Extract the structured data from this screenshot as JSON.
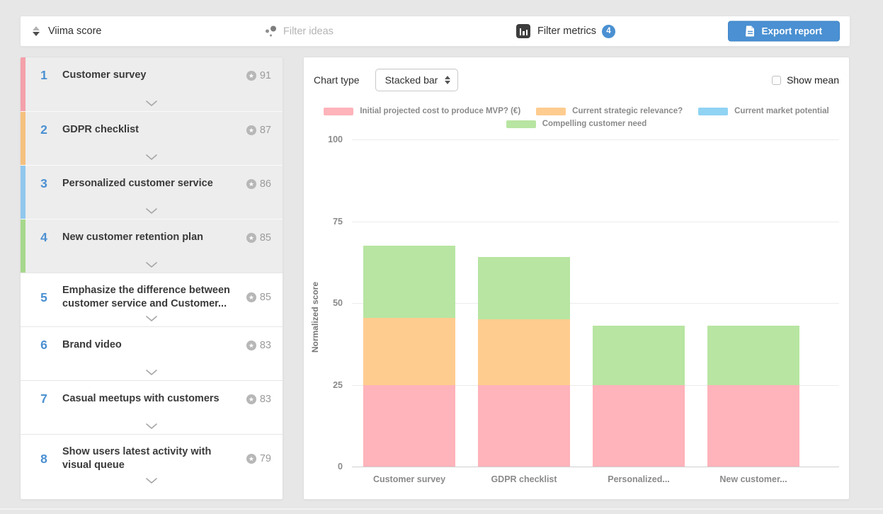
{
  "colors": {
    "accent_blue": "#4a90d2",
    "selected_row_bg": "#ededed"
  },
  "topbar": {
    "sort_label": "Viima score",
    "filter_ideas_placeholder": "Filter ideas",
    "filter_metrics_label": "Filter metrics",
    "filter_metrics_count": "4",
    "export_label": "Export report"
  },
  "idea_list": [
    {
      "rank": "1",
      "title": "Customer survey",
      "score": "91",
      "strip_color": "#f4a0aa",
      "selected": true
    },
    {
      "rank": "2",
      "title": "GDPR checklist",
      "score": "87",
      "strip_color": "#f5c07e",
      "selected": true
    },
    {
      "rank": "3",
      "title": "Personalized customer service",
      "score": "86",
      "strip_color": "#90c7ee",
      "selected": true
    },
    {
      "rank": "4",
      "title": "New customer retention plan",
      "score": "85",
      "strip_color": "#a6d88b",
      "selected": true
    },
    {
      "rank": "5",
      "title": "Emphasize the difference between customer service and Customer...",
      "score": "85",
      "strip_color": "",
      "selected": false
    },
    {
      "rank": "6",
      "title": "Brand video",
      "score": "83",
      "strip_color": "",
      "selected": false
    },
    {
      "rank": "7",
      "title": "Casual meetups with customers",
      "score": "83",
      "strip_color": "",
      "selected": false
    },
    {
      "rank": "8",
      "title": "Show users latest activity with visual queue",
      "score": "79",
      "strip_color": "",
      "selected": false
    }
  ],
  "chart_panel": {
    "chart_type_label": "Chart type",
    "chart_type_value": "Stacked bar",
    "show_mean_label": "Show mean",
    "show_mean_checked": false
  },
  "chart_data": {
    "type": "bar",
    "stacked": true,
    "categories": [
      "Customer survey",
      "GDPR checklist",
      "Personalized...",
      "New customer..."
    ],
    "series": [
      {
        "name": "Initial projected cost to produce MVP? (€)",
        "color": "#ffb3ba",
        "values": [
          25,
          25,
          25,
          25
        ]
      },
      {
        "name": "Current strategic relevance?",
        "color": "#ffcc8f",
        "values": [
          20.5,
          20,
          0,
          0
        ]
      },
      {
        "name": "Current market potential",
        "color": "#90d3f3",
        "values": [
          0,
          0,
          0,
          0
        ]
      },
      {
        "name": "Compelling customer need",
        "color": "#b8e5a2",
        "values": [
          22,
          19,
          18,
          18
        ]
      }
    ],
    "xlabel": "",
    "ylabel": "Normalized score",
    "ylim": [
      0,
      100
    ],
    "yticks": [
      0,
      25,
      50,
      75,
      100
    ],
    "grid": true,
    "legend_position": "top"
  }
}
